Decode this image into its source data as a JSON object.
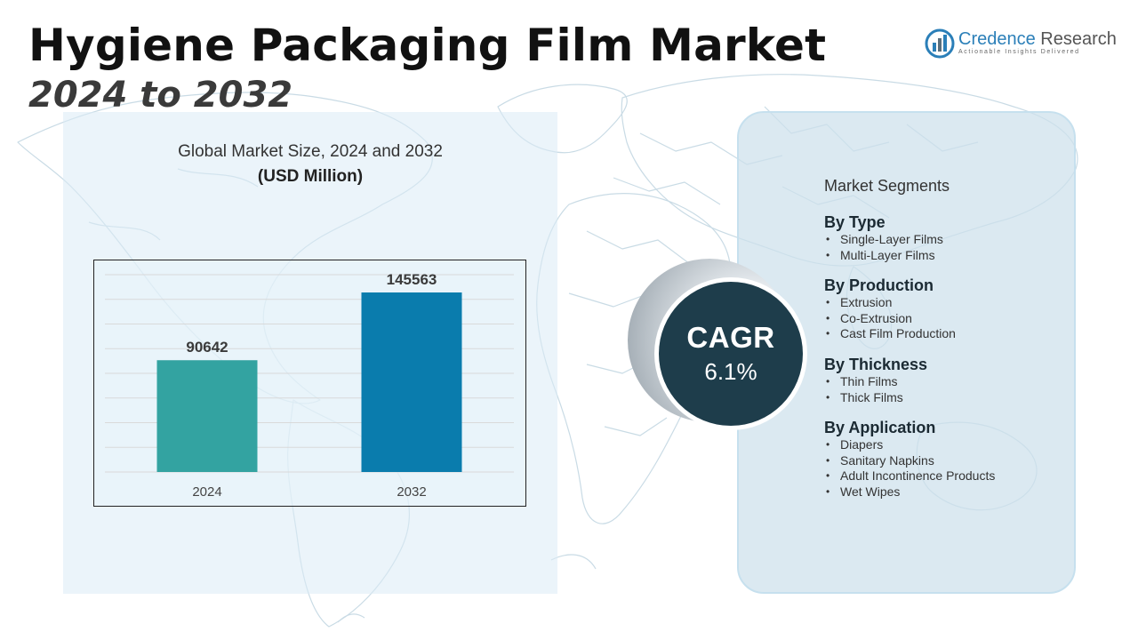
{
  "header": {
    "title": "Hygiene Packaging Film Market",
    "subtitle": "2024 to 2032"
  },
  "logo": {
    "name_part1": "Credence",
    "name_part2": " Research",
    "tagline": "Actionable Insights Delivered"
  },
  "chart_panel": {
    "title": "Global Market Size, 2024 and 2032",
    "units": "(USD Million)"
  },
  "chart_data": {
    "type": "bar",
    "categories": [
      "2024",
      "2032"
    ],
    "values": [
      90642,
      145563
    ],
    "data_labels": [
      "90642",
      "145563"
    ],
    "colors": [
      "#33a3a1",
      "#0a7cad"
    ],
    "ylim": [
      0,
      160000
    ],
    "grid": true,
    "title": "",
    "xlabel": "",
    "ylabel": ""
  },
  "cagr": {
    "label": "CAGR",
    "value": "6.1%"
  },
  "segments": {
    "heading": "Market Segments",
    "groups": [
      {
        "title": "By Type",
        "items": [
          "Single-Layer Films",
          "Multi-Layer Films"
        ]
      },
      {
        "title": "By Production",
        "items": [
          "Extrusion",
          "Co-Extrusion",
          "Cast Film Production"
        ]
      },
      {
        "title": "By Thickness",
        "items": [
          "Thin Films",
          "Thick Films"
        ]
      },
      {
        "title": "By Application",
        "items": [
          "Diapers",
          "Sanitary Napkins",
          "Adult Incontinence Products",
          "Wet Wipes"
        ]
      }
    ]
  },
  "colors": {
    "cagr_circle": "#1e3d4b",
    "panel_left": "#daebf6",
    "panel_right": "#cde1eb",
    "logo_accent": "#2b7fb8"
  }
}
